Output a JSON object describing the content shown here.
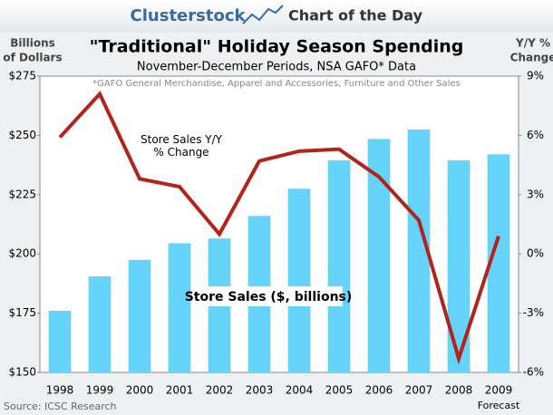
{
  "header": {
    "brand": "Clusterstock",
    "tagline": "Chart of the Day"
  },
  "chart_data": {
    "type": "bar",
    "title": "\"Traditional\" Holiday Season Spending",
    "subtitle": "November-December Periods, NSA GAFO* Data",
    "note": "*GAFO General Merchandise, Apparel and Accessories, Furniture and Other Sales",
    "ylabel": [
      "Billions",
      "of Dollars"
    ],
    "y2label": [
      "Y/Y %",
      "Change"
    ],
    "categories": [
      "1998",
      "1999",
      "2000",
      "2001",
      "2002",
      "2003",
      "2004",
      "2005",
      "2006",
      "2007",
      "2008",
      "2009"
    ],
    "category_note": "Forecast",
    "series": [
      {
        "name": "Store Sales ($, billions)",
        "type": "bar",
        "color": "#66d3fa",
        "values": [
          176,
          190.5,
          197.5,
          204.5,
          206.5,
          216,
          227.5,
          239.5,
          248.5,
          252.5,
          239.5,
          242
        ]
      },
      {
        "name": "Store Sales Y/Y % Change",
        "type": "line",
        "axis": "y2",
        "color": "#b3231b",
        "values": [
          5.9,
          8.1,
          3.8,
          3.4,
          1.0,
          4.7,
          5.2,
          5.3,
          3.9,
          1.7,
          -5.3,
          0.9
        ]
      }
    ],
    "ylim": [
      150,
      275
    ],
    "yticks": [
      {
        "value": 150,
        "label": "$150"
      },
      {
        "value": 175,
        "label": "$175"
      },
      {
        "value": 200,
        "label": "$200"
      },
      {
        "value": 225,
        "label": "$225"
      },
      {
        "value": 250,
        "label": "$250"
      },
      {
        "value": 275,
        "label": "$275"
      }
    ],
    "y2lim": [
      -6,
      9
    ],
    "y2ticks": [
      {
        "value": -6,
        "label": "-6%"
      },
      {
        "value": -3,
        "label": "-3%"
      },
      {
        "value": 0,
        "label": "0%"
      },
      {
        "value": 3,
        "label": "3%"
      },
      {
        "value": 6,
        "label": "6%"
      },
      {
        "value": 9,
        "label": "9%"
      }
    ],
    "grid": false,
    "source": "Source: ICSC Research"
  }
}
